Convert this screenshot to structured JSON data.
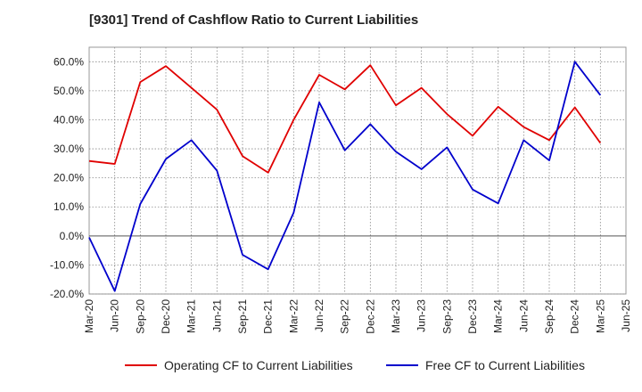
{
  "title": "[9301]  Trend of Cashflow Ratio to Current Liabilities",
  "colors": {
    "operating": "#e00000",
    "free": "#0000cc",
    "grid": "#888888",
    "zero": "#555555"
  },
  "chart_data": {
    "type": "line",
    "title": "[9301]  Trend of Cashflow Ratio to Current Liabilities",
    "categories": [
      "Mar-20",
      "Jun-20",
      "Sep-20",
      "Dec-20",
      "Mar-21",
      "Jun-21",
      "Sep-21",
      "Dec-21",
      "Mar-22",
      "Jun-22",
      "Sep-22",
      "Dec-22",
      "Mar-23",
      "Jun-23",
      "Sep-23",
      "Dec-23",
      "Mar-24",
      "Jun-24",
      "Sep-24",
      "Dec-24",
      "Mar-25",
      "Jun-25"
    ],
    "ylim": [
      -20,
      65
    ],
    "yticks": [
      -20,
      -10,
      0,
      10,
      20,
      30,
      40,
      50,
      60
    ],
    "ytick_labels": [
      "-20.0%",
      "-10.0%",
      "0.0%",
      "10.0%",
      "20.0%",
      "30.0%",
      "40.0%",
      "50.0%",
      "60.0%"
    ],
    "grid": true,
    "legend_position": "bottom",
    "series": [
      {
        "name": "Operating CF to Current Liabilities",
        "color": "#e00000",
        "values": [
          25.8,
          24.8,
          53.0,
          58.5,
          51.0,
          43.5,
          27.5,
          21.8,
          40.0,
          55.5,
          50.5,
          58.8,
          45.0,
          51.0,
          42.0,
          34.5,
          44.5,
          37.5,
          33.0,
          44.3,
          32.0,
          null
        ]
      },
      {
        "name": "Free CF to Current Liabilities",
        "color": "#0000cc",
        "values": [
          -0.5,
          -19.0,
          11.0,
          26.5,
          33.0,
          22.5,
          -6.5,
          -11.5,
          8.0,
          46.0,
          29.5,
          38.5,
          29.0,
          23.0,
          30.5,
          16.0,
          11.2,
          33.0,
          26.0,
          60.0,
          48.5,
          null
        ]
      }
    ]
  }
}
